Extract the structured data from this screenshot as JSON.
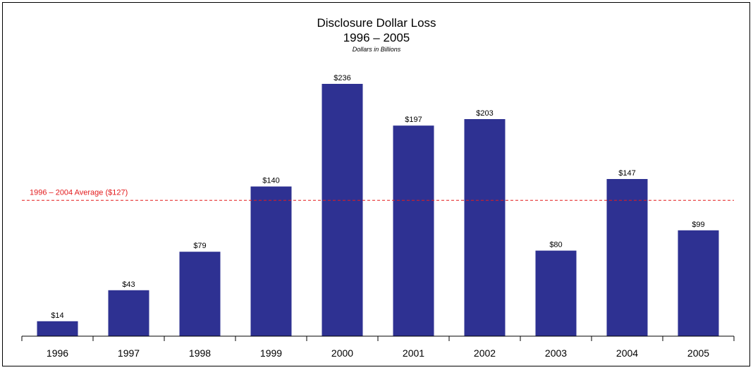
{
  "chart_data": {
    "type": "bar",
    "title": "Disclosure Dollar Loss",
    "title_range": "1996 – 2005",
    "subtitle": "Dollars in Billions",
    "categories": [
      "1996",
      "1997",
      "1998",
      "1999",
      "2000",
      "2001",
      "2002",
      "2003",
      "2004",
      "2005"
    ],
    "values": [
      14,
      43,
      79,
      140,
      236,
      197,
      203,
      80,
      147,
      99
    ],
    "value_labels": [
      "$14",
      "$43",
      "$79",
      "$140",
      "$236",
      "$197",
      "$203",
      "$80",
      "$147",
      "$99"
    ],
    "reference_line": {
      "label": "1996 – 2004 Average ($127)",
      "value": 127,
      "style": "dashed",
      "color": "#e31a1c"
    },
    "bar_color": "#2e3192",
    "xlabel": "",
    "ylabel": "",
    "ylim": [
      0,
      250
    ],
    "grid": false,
    "legend": "none"
  }
}
